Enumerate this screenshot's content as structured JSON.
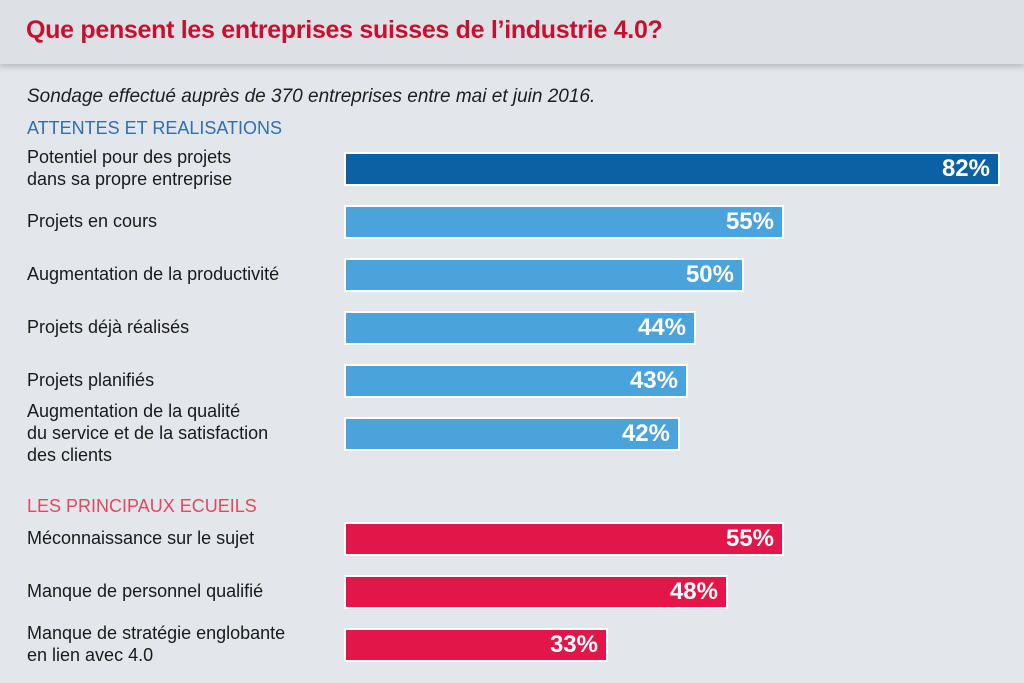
{
  "header": {
    "title": "Que pensent les entreprises suisses de l’industrie 4.0?"
  },
  "subtitle": "Sondage effectué auprès de 370 entreprises entre mai et juin 2016.",
  "sections": [
    {
      "title": "ATTENTES ET REALISATIONS"
    },
    {
      "title": "LES PRINCIPAUX ECUEILS"
    }
  ],
  "colors": {
    "highlight": "#0b61a4",
    "expectations": "#4aa3db",
    "obstacles": "#e31649",
    "title": "#c8102e"
  },
  "chart_data": {
    "type": "bar",
    "orientation": "horizontal",
    "title": "Que pensent les entreprises suisses de l’industrie 4.0?",
    "subtitle": "Sondage effectué auprès de 370 entreprises entre mai et juin 2016.",
    "unit": "%",
    "xlim": [
      0,
      82
    ],
    "series": [
      {
        "name": "ATTENTES ET REALISATIONS",
        "items": [
          {
            "label_lines": [
              "Potentiel pour des projets",
              "dans sa propre entreprise"
            ],
            "value": 82,
            "display": "82%"
          },
          {
            "label_lines": [
              "Projets en cours"
            ],
            "value": 55,
            "display": "55%"
          },
          {
            "label_lines": [
              "Augmentation de la productivité"
            ],
            "value": 50,
            "display": "50%"
          },
          {
            "label_lines": [
              "Projets déjà réalisés"
            ],
            "value": 44,
            "display": "44%"
          },
          {
            "label_lines": [
              "Projets planifiés"
            ],
            "value": 43,
            "display": "43%"
          },
          {
            "label_lines": [
              "Augmentation de la qualité",
              "du service et de la satisfaction",
              "des clients"
            ],
            "value": 42,
            "display": "42%"
          }
        ]
      },
      {
        "name": "LES PRINCIPAUX ECUEILS",
        "items": [
          {
            "label_lines": [
              "Méconnaissance sur le sujet"
            ],
            "value": 55,
            "display": "55%"
          },
          {
            "label_lines": [
              "Manque de personnel qualifié"
            ],
            "value": 48,
            "display": "48%"
          },
          {
            "label_lines": [
              "Manque de stratégie englobante",
              "en lien avec 4.0"
            ],
            "value": 33,
            "display": "33%"
          }
        ]
      }
    ]
  }
}
